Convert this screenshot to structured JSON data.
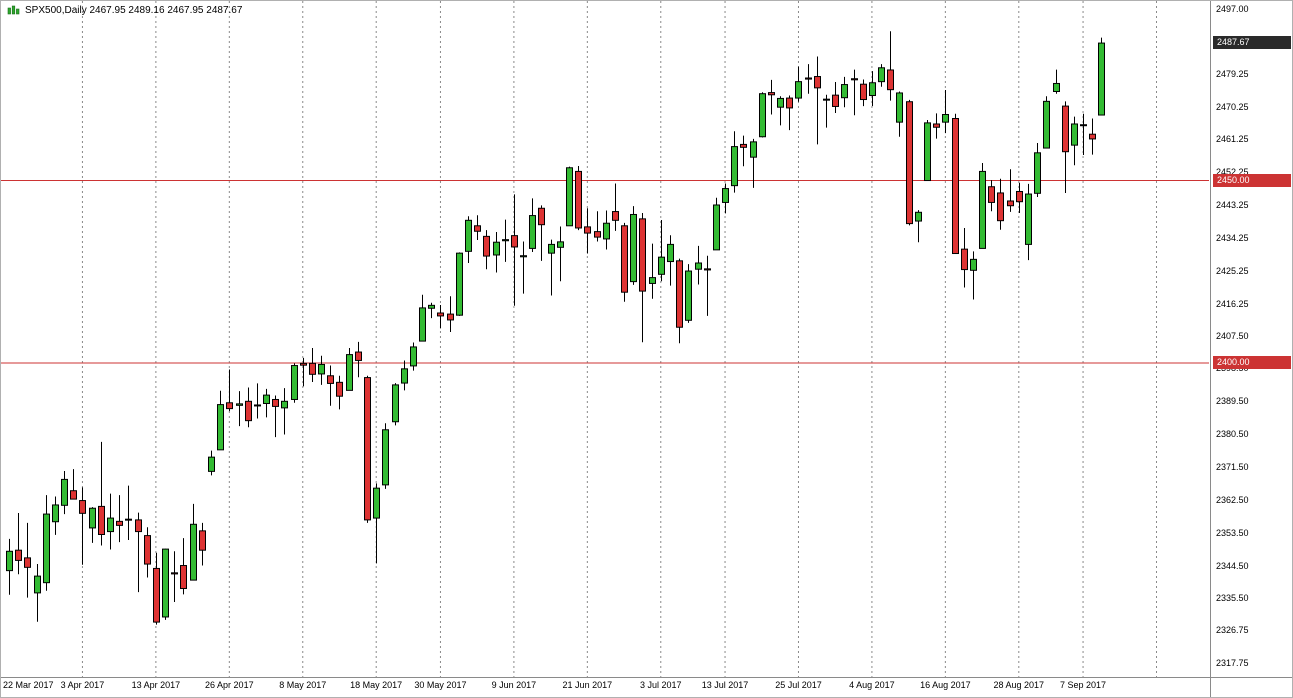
{
  "title_bar": {
    "symbol": "SPX500",
    "period": "Daily",
    "text": "SPX500,Daily 2467.95 2489.16 2467.95 2487.67"
  },
  "colors": {
    "background": "#ffffff",
    "bull": "#33bb33",
    "bear": "#dd3333",
    "outline": "#000000",
    "wick": "#000000",
    "grid": "#8a8a8a",
    "hline": "#cc3333",
    "current_badge_bg": "#2a2a2a",
    "line_badge_bg": "#cc3333",
    "badge_text": "#ffffff",
    "axis_text": "#000000",
    "separator": "#8a8a8a"
  },
  "chart_data": {
    "type": "candlestick",
    "title": "SPX500,Daily",
    "symbol": "SPX500",
    "timeframe": "Daily",
    "grid": "vertical-dashed",
    "legend": "none",
    "current_ohlc": {
      "open": 2467.95,
      "high": 2489.16,
      "low": 2467.95,
      "close": 2487.67
    },
    "current_price": 2487.67,
    "current_badge": "2487.67",
    "ylim": [
      2313.95,
      2499.2
    ],
    "hlines": [
      2450.0,
      2400.0
    ],
    "line_badges": [
      "2450.00",
      "2400.00"
    ],
    "y_ticks": [
      "2497.00",
      "2479.25",
      "2470.25",
      "2461.25",
      "2452.25",
      "2443.25",
      "2434.25",
      "2425.25",
      "2416.25",
      "2407.50",
      "2398.50",
      "2389.50",
      "2380.50",
      "2371.50",
      "2362.50",
      "2353.50",
      "2344.50",
      "2335.50",
      "2326.75",
      "2317.75"
    ],
    "x_labels": [
      {
        "text": "22 Mar 2017",
        "i": 0
      },
      {
        "text": "3 Apr 2017",
        "i": 8
      },
      {
        "text": "13 Apr 2017",
        "i": 16
      },
      {
        "text": "26 Apr 2017",
        "i": 24
      },
      {
        "text": "8 May 2017",
        "i": 32
      },
      {
        "text": "18 May 2017",
        "i": 40
      },
      {
        "text": "30 May 2017",
        "i": 47
      },
      {
        "text": "9 Jun 2017",
        "i": 55
      },
      {
        "text": "21 Jun 2017",
        "i": 63
      },
      {
        "text": "3 Jul 2017",
        "i": 71
      },
      {
        "text": "13 Jul 2017",
        "i": 78
      },
      {
        "text": "25 Jul 2017",
        "i": 86
      },
      {
        "text": "4 Aug 2017",
        "i": 94
      },
      {
        "text": "16 Aug 2017",
        "i": 102
      },
      {
        "text": "28 Aug 2017",
        "i": 110
      },
      {
        "text": "7 Sep 2017",
        "i": 117
      }
    ],
    "future_gridline_i": 125,
    "ohlc": [
      [
        2343.1,
        2351.8,
        2336.5,
        2348.4
      ],
      [
        2348.7,
        2358.9,
        2342.1,
        2345.9
      ],
      [
        2346.6,
        2356.2,
        2335.7,
        2344.0
      ],
      [
        2337.0,
        2344.9,
        2329.1,
        2341.6
      ],
      [
        2339.8,
        2363.8,
        2337.6,
        2358.6
      ],
      [
        2356.5,
        2363.4,
        2352.9,
        2361.1
      ],
      [
        2361.0,
        2370.4,
        2358.6,
        2368.1
      ],
      [
        2365.0,
        2370.9,
        2362.6,
        2362.7
      ],
      [
        2362.3,
        2365.9,
        2344.7,
        2358.8
      ],
      [
        2354.8,
        2360.5,
        2350.7,
        2360.2
      ],
      [
        2360.7,
        2378.4,
        2350.0,
        2353.0
      ],
      [
        2353.8,
        2364.2,
        2348.9,
        2357.5
      ],
      [
        2356.6,
        2363.8,
        2350.9,
        2355.5
      ],
      [
        2357.2,
        2366.4,
        2351.5,
        2357.2
      ],
      [
        2357.0,
        2359.0,
        2337.2,
        2353.8
      ],
      [
        2352.7,
        2355.0,
        2341.2,
        2344.9
      ],
      [
        2343.7,
        2348.0,
        2328.3,
        2329.0
      ],
      [
        2330.4,
        2349.1,
        2329.6,
        2349.0
      ],
      [
        2342.5,
        2348.4,
        2334.5,
        2342.2
      ],
      [
        2344.5,
        2352.0,
        2336.6,
        2338.2
      ],
      [
        2340.5,
        2361.4,
        2340.5,
        2355.8
      ],
      [
        2354.0,
        2356.2,
        2344.5,
        2348.7
      ],
      [
        2370.3,
        2376.0,
        2369.2,
        2374.2
      ],
      [
        2376.2,
        2392.4,
        2376.2,
        2388.6
      ],
      [
        2389.1,
        2398.2,
        2386.8,
        2387.5
      ],
      [
        2388.4,
        2392.3,
        2382.7,
        2388.8
      ],
      [
        2389.5,
        2393.3,
        2382.4,
        2384.2
      ],
      [
        2388.5,
        2394.4,
        2384.8,
        2388.3
      ],
      [
        2388.9,
        2392.9,
        2385.1,
        2391.2
      ],
      [
        2390.0,
        2391.1,
        2379.7,
        2388.1
      ],
      [
        2387.7,
        2393.1,
        2380.4,
        2389.5
      ],
      [
        2390.0,
        2399.9,
        2389.1,
        2399.3
      ],
      [
        2399.9,
        2401.4,
        2393.6,
        2399.4
      ],
      [
        2399.9,
        2404.1,
        2394.8,
        2396.9
      ],
      [
        2397.0,
        2402.0,
        2394.0,
        2399.6
      ],
      [
        2396.5,
        2399.3,
        2388.3,
        2394.4
      ],
      [
        2394.7,
        2396.5,
        2387.3,
        2390.9
      ],
      [
        2392.5,
        2404.1,
        2392.5,
        2402.3
      ],
      [
        2403.0,
        2405.8,
        2396.1,
        2400.7
      ],
      [
        2396.0,
        2396.5,
        2356.2,
        2357.0
      ],
      [
        2357.5,
        2367.0,
        2345.1,
        2365.7
      ],
      [
        2366.6,
        2383.5,
        2365.5,
        2381.7
      ],
      [
        2383.9,
        2394.5,
        2382.9,
        2394.0
      ],
      [
        2394.5,
        2400.7,
        2392.5,
        2398.4
      ],
      [
        2399.2,
        2405.6,
        2397.9,
        2404.4
      ],
      [
        2406.0,
        2418.7,
        2405.9,
        2415.1
      ],
      [
        2415.0,
        2416.5,
        2412.3,
        2415.8
      ],
      [
        2413.7,
        2415.9,
        2409.5,
        2412.9
      ],
      [
        2413.4,
        2418.3,
        2408.5,
        2411.8
      ],
      [
        2413.1,
        2430.3,
        2412.9,
        2430.1
      ],
      [
        2430.6,
        2440.2,
        2427.4,
        2439.1
      ],
      [
        2437.6,
        2440.5,
        2433.7,
        2436.1
      ],
      [
        2434.7,
        2436.4,
        2425.7,
        2429.3
      ],
      [
        2429.6,
        2435.9,
        2424.8,
        2433.1
      ],
      [
        2433.5,
        2439.3,
        2427.7,
        2433.8
      ],
      [
        2434.9,
        2446.2,
        2415.7,
        2431.8
      ],
      [
        2429.1,
        2433.3,
        2419.0,
        2429.4
      ],
      [
        2431.4,
        2445.1,
        2430.4,
        2440.4
      ],
      [
        2442.4,
        2443.2,
        2428.0,
        2437.9
      ],
      [
        2430.1,
        2433.8,
        2418.5,
        2432.5
      ],
      [
        2431.7,
        2437.4,
        2422.4,
        2433.2
      ],
      [
        2437.6,
        2453.8,
        2437.6,
        2453.5
      ],
      [
        2452.5,
        2454.0,
        2436.4,
        2437.0
      ],
      [
        2437.3,
        2442.4,
        2430.0,
        2435.6
      ],
      [
        2436.0,
        2441.6,
        2433.3,
        2434.5
      ],
      [
        2434.0,
        2441.8,
        2431.1,
        2438.3
      ],
      [
        2441.5,
        2449.2,
        2436.2,
        2439.1
      ],
      [
        2437.6,
        2438.4,
        2416.8,
        2419.4
      ],
      [
        2422.3,
        2443.0,
        2421.4,
        2440.7
      ],
      [
        2439.5,
        2441.1,
        2405.7,
        2419.7
      ],
      [
        2421.8,
        2432.7,
        2417.6,
        2423.4
      ],
      [
        2424.3,
        2439.2,
        2422.4,
        2429.0
      ],
      [
        2427.8,
        2435.0,
        2421.2,
        2432.5
      ],
      [
        2428.0,
        2428.6,
        2405.4,
        2409.8
      ],
      [
        2411.7,
        2427.1,
        2411.0,
        2425.2
      ],
      [
        2425.7,
        2432.1,
        2421.5,
        2427.4
      ],
      [
        2425.8,
        2429.4,
        2412.9,
        2425.5
      ],
      [
        2431.0,
        2445.3,
        2431.0,
        2443.3
      ],
      [
        2444.0,
        2449.2,
        2441.0,
        2447.8
      ],
      [
        2448.6,
        2463.5,
        2446.7,
        2459.3
      ],
      [
        2459.9,
        2462.3,
        2453.9,
        2459.1
      ],
      [
        2456.4,
        2461.4,
        2448.0,
        2460.6
      ],
      [
        2462.0,
        2474.2,
        2461.8,
        2473.8
      ],
      [
        2474.1,
        2477.6,
        2468.1,
        2473.5
      ],
      [
        2470.1,
        2473.1,
        2465.1,
        2472.5
      ],
      [
        2472.6,
        2473.3,
        2463.8,
        2469.9
      ],
      [
        2472.6,
        2481.2,
        2471.6,
        2477.1
      ],
      [
        2478.1,
        2481.9,
        2473.8,
        2477.8
      ],
      [
        2478.5,
        2484.0,
        2459.9,
        2475.4
      ],
      [
        2472.3,
        2473.5,
        2464.5,
        2472.1
      ],
      [
        2473.4,
        2477.0,
        2468.5,
        2470.3
      ],
      [
        2472.7,
        2478.4,
        2470.1,
        2476.3
      ],
      [
        2477.9,
        2480.4,
        2467.9,
        2477.6
      ],
      [
        2476.4,
        2477.7,
        2470.4,
        2472.2
      ],
      [
        2473.3,
        2480.0,
        2470.4,
        2476.8
      ],
      [
        2477.1,
        2481.9,
        2475.7,
        2480.9
      ],
      [
        2480.3,
        2490.9,
        2471.9,
        2474.9
      ],
      [
        2466.0,
        2474.4,
        2462.0,
        2474.0
      ],
      [
        2471.6,
        2472.1,
        2437.7,
        2438.2
      ],
      [
        2438.9,
        2441.9,
        2433.1,
        2441.3
      ],
      [
        2450.0,
        2466.6,
        2449.9,
        2465.8
      ],
      [
        2465.5,
        2468.4,
        2461.5,
        2464.6
      ],
      [
        2466.0,
        2474.8,
        2463.0,
        2468.1
      ],
      [
        2467.0,
        2468.3,
        2430.3,
        2430.0
      ],
      [
        2431.2,
        2437.0,
        2420.7,
        2425.6
      ],
      [
        2425.4,
        2430.6,
        2417.4,
        2428.4
      ],
      [
        2431.4,
        2454.8,
        2431.4,
        2452.5
      ],
      [
        2448.3,
        2450.1,
        2441.6,
        2444.0
      ],
      [
        2446.6,
        2450.5,
        2436.5,
        2439.0
      ],
      [
        2444.4,
        2453.1,
        2441.4,
        2443.1
      ],
      [
        2447.0,
        2449.4,
        2441.1,
        2444.2
      ],
      [
        2432.5,
        2449.1,
        2428.2,
        2446.3
      ],
      [
        2446.5,
        2460.3,
        2445.5,
        2457.6
      ],
      [
        2458.9,
        2473.1,
        2458.9,
        2471.7
      ],
      [
        2474.4,
        2480.4,
        2473.8,
        2476.6
      ],
      [
        2470.4,
        2471.7,
        2446.6,
        2457.9
      ],
      [
        2459.7,
        2467.5,
        2454.2,
        2465.5
      ],
      [
        2465.3,
        2468.3,
        2457.0,
        2465.1
      ],
      [
        2462.7,
        2467.0,
        2457.1,
        2461.4
      ],
      [
        2467.95,
        2489.16,
        2467.95,
        2487.67
      ]
    ]
  }
}
